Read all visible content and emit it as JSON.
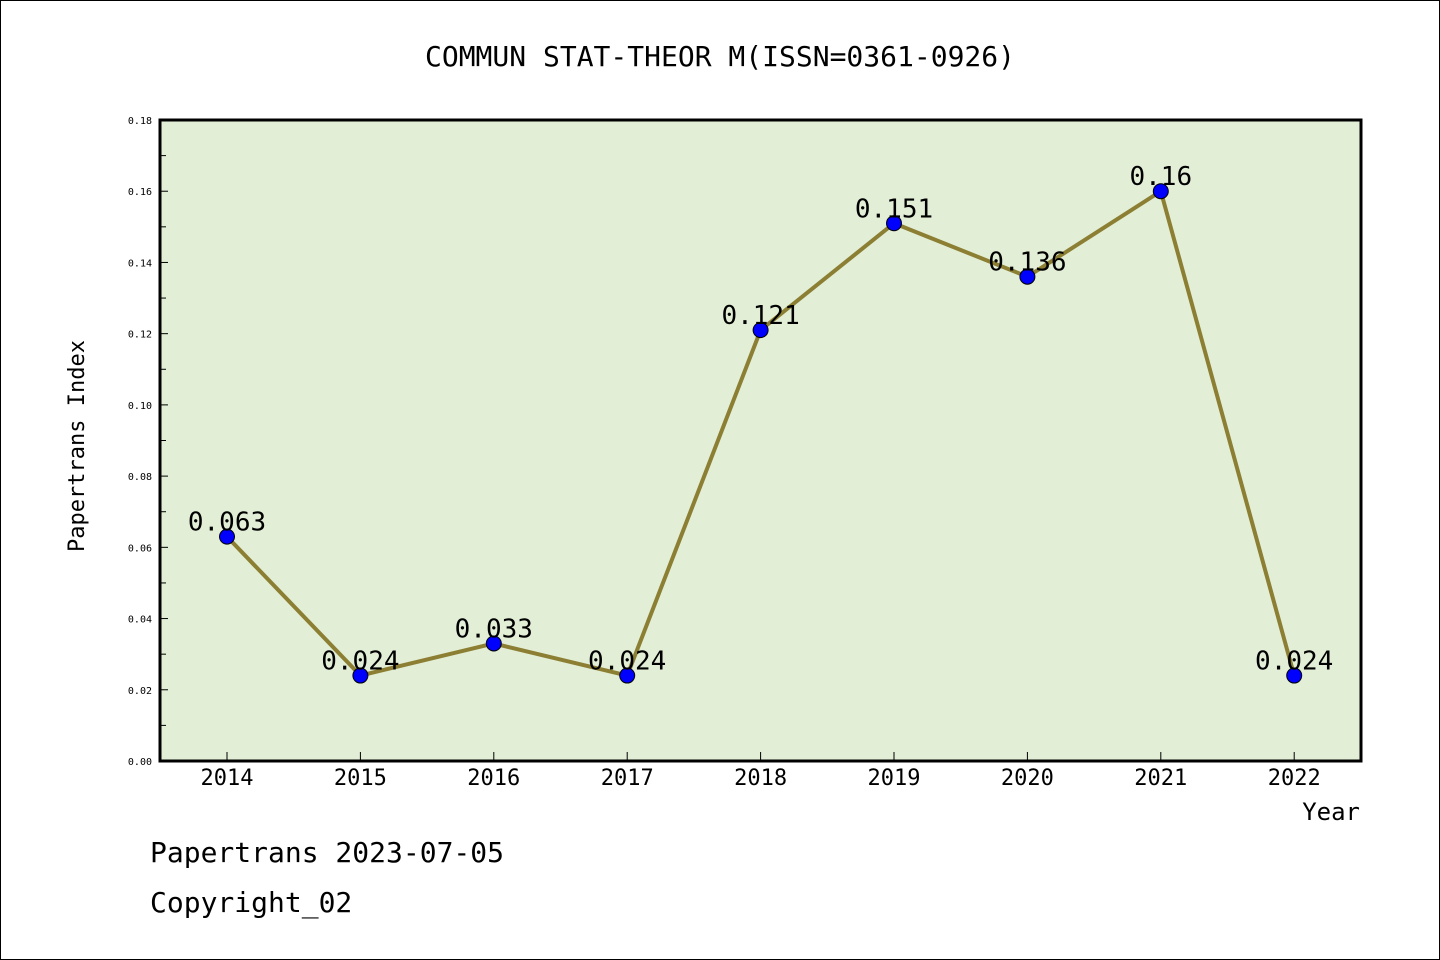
{
  "chart_data": {
    "type": "line",
    "title": "COMMUN STAT-THEOR M(ISSN=0361-0926)",
    "xlabel": "Year",
    "ylabel": "Papertrans Index",
    "categories": [
      "2014",
      "2015",
      "2016",
      "2017",
      "2018",
      "2019",
      "2020",
      "2021",
      "2022"
    ],
    "series": [
      {
        "values": [
          0.063,
          0.024,
          0.033,
          0.024,
          0.121,
          0.151,
          0.136,
          0.16,
          0.024
        ],
        "labels": [
          "0.063",
          "0.024",
          "0.033",
          "0.024",
          "0.121",
          "0.151",
          "0.136",
          "0.16",
          "0.024"
        ]
      }
    ],
    "ylim": [
      0,
      0.18
    ],
    "yticks": [
      "0.00",
      "0.02",
      "0.04",
      "0.06",
      "0.08",
      "0.10",
      "0.12",
      "0.14",
      "0.16",
      "0.18"
    ],
    "grid": false,
    "colors": {
      "plot_background": "#e2efd6",
      "line": "#8c7f33",
      "marker": "#0000ff"
    }
  },
  "footer": {
    "line1": "Papertrans 2023-07-05",
    "line2": "Copyright_02"
  }
}
